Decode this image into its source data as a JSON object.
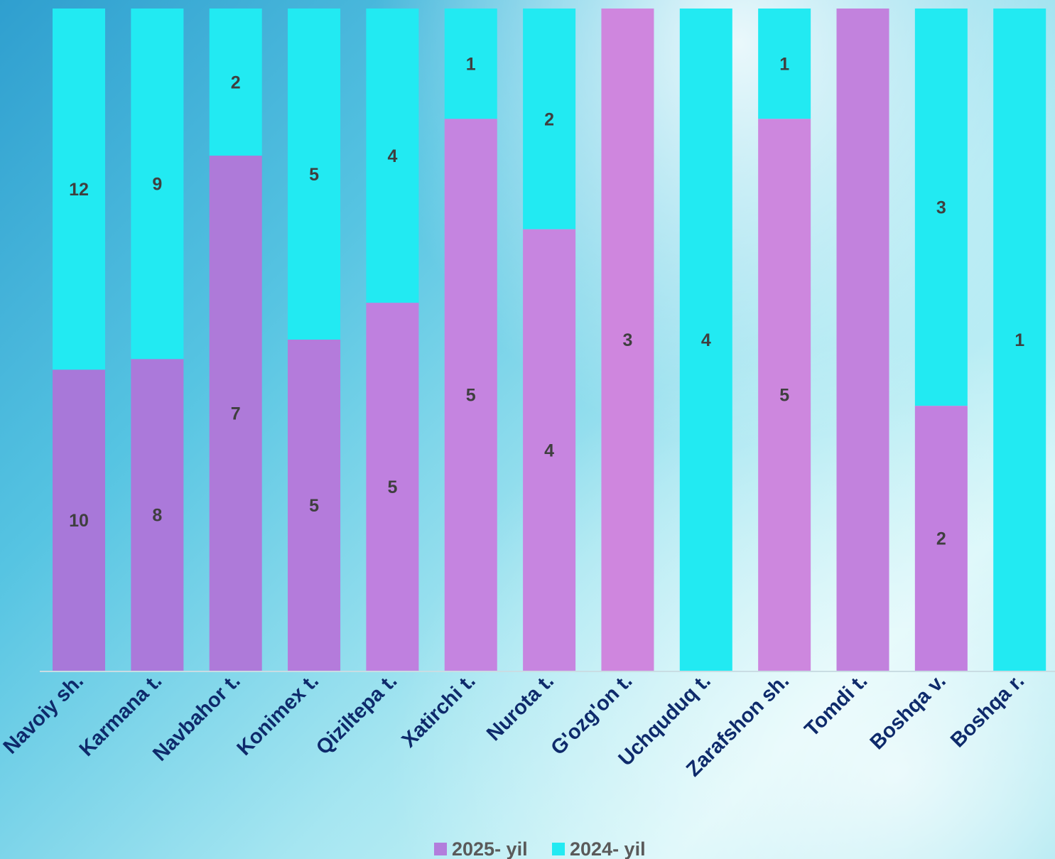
{
  "chart_data": {
    "type": "bar",
    "stacked": true,
    "normalized": true,
    "categories": [
      "Navoiy sh.",
      "Karmana t.",
      "Navbahor t.",
      "Konimex t.",
      "Qiziltepa t.",
      "Xatirchi t.",
      "Nurota t.",
      "G'ozg'on t.",
      "Uchquduq t.",
      "Zarafshon sh.",
      "Tomdi t.",
      "Boshqa v.",
      "Boshqa r."
    ],
    "series": [
      {
        "name": "2025- yil",
        "values": [
          10,
          8,
          7,
          5,
          5,
          5,
          4,
          3,
          0,
          5,
          1,
          2,
          0
        ],
        "labels": [
          "10",
          "8",
          "7",
          "5",
          "5",
          "5",
          "4",
          "3",
          "",
          "5",
          "",
          "2",
          ""
        ],
        "color": "#b27ddc"
      },
      {
        "name": "2024- yil",
        "values": [
          12,
          9,
          2,
          5,
          4,
          1,
          2,
          0,
          4,
          1,
          0,
          3,
          1
        ],
        "labels": [
          "12",
          "9",
          "2",
          "5",
          "4",
          "1",
          "2",
          "",
          "4",
          "1",
          "",
          "3",
          "1"
        ],
        "color": "#22eaf2"
      }
    ],
    "legend_position": "bottom",
    "grid": false
  }
}
